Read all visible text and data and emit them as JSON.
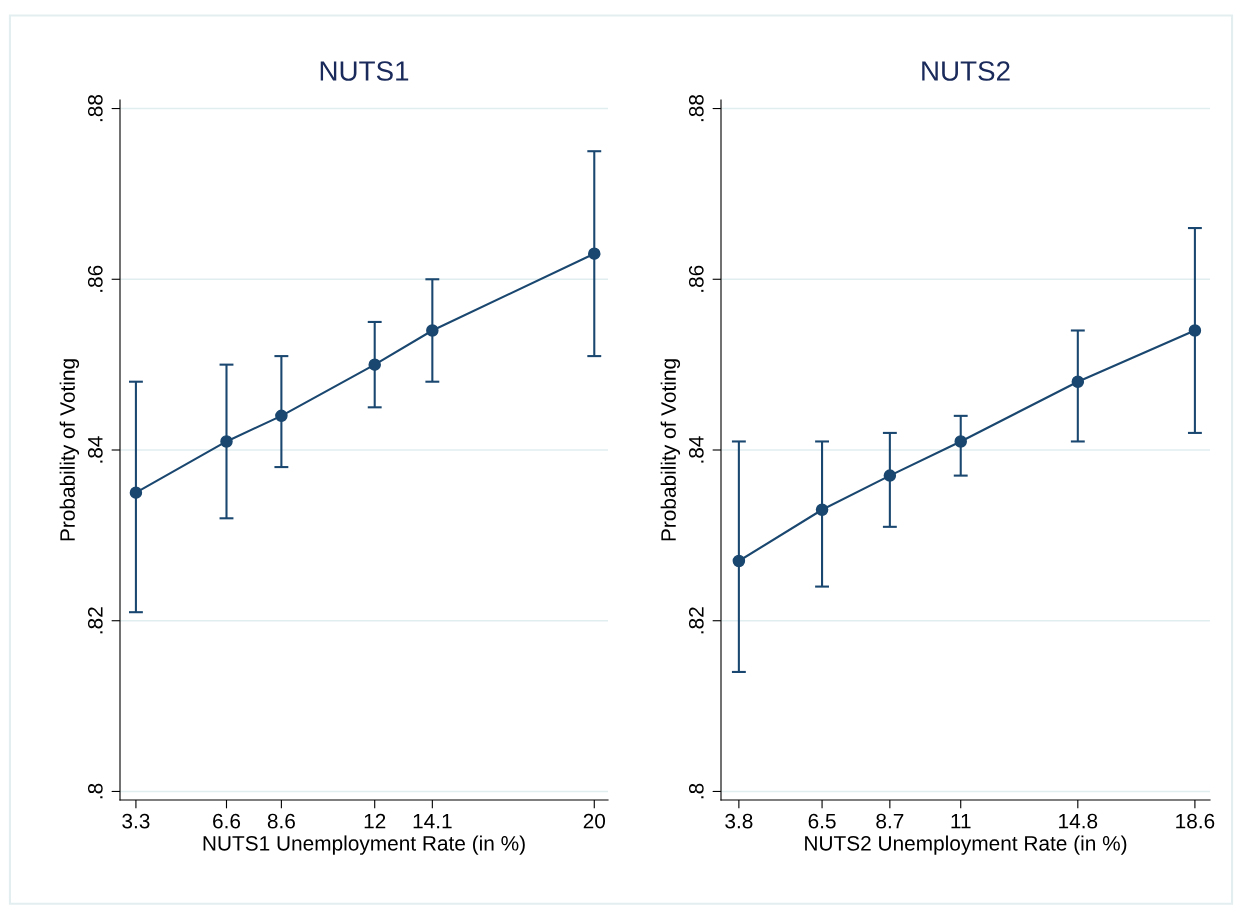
{
  "chart_data": [
    {
      "type": "line",
      "title": "NUTS1",
      "xlabel": "NUTS1 Unemployment Rate (in %)",
      "ylabel": "Probability of Voting",
      "x": [
        3.3,
        6.6,
        8.6,
        12,
        14.1,
        20
      ],
      "series": [
        {
          "color": "#1a476f",
          "values": [
            0.835,
            0.841,
            0.844,
            0.85,
            0.854,
            0.863
          ],
          "errors": [
            [
              0.821,
              0.848
            ],
            [
              0.832,
              0.85
            ],
            [
              0.838,
              0.851
            ],
            [
              0.845,
              0.855
            ],
            [
              0.848,
              0.86
            ],
            [
              0.851,
              0.875
            ]
          ]
        }
      ],
      "marker": "circle",
      "line_style": "solid",
      "grid": "y",
      "legend": false,
      "xlim": [
        2.72,
        20.5
      ],
      "xticks": [
        3.3,
        6.6,
        8.6,
        12,
        14.1,
        20
      ],
      "ylim": [
        0.799,
        0.881
      ],
      "yticks": [
        {
          "value": 0.8,
          "label": ".8"
        },
        {
          "value": 0.82,
          "label": ".82"
        },
        {
          "value": 0.84,
          "label": ".84"
        },
        {
          "value": 0.86,
          "label": ".86"
        },
        {
          "value": 0.88,
          "label": ".88"
        }
      ]
    },
    {
      "type": "line",
      "title": "NUTS2",
      "xlabel": "NUTS2 Unemployment Rate (in %)",
      "ylabel": "Probability of Voting",
      "x": [
        3.8,
        6.5,
        8.7,
        11,
        14.8,
        18.6
      ],
      "series": [
        {
          "color": "#1a476f",
          "values": [
            0.827,
            0.833,
            0.837,
            0.841,
            0.848,
            0.854
          ],
          "errors": [
            [
              0.814,
              0.841
            ],
            [
              0.824,
              0.841
            ],
            [
              0.831,
              0.842
            ],
            [
              0.837,
              0.844
            ],
            [
              0.841,
              0.854
            ],
            [
              0.842,
              0.866
            ]
          ]
        }
      ],
      "marker": "circle",
      "line_style": "solid",
      "grid": "y",
      "legend": false,
      "xlim": [
        3.22,
        19.09
      ],
      "xticks": [
        3.8,
        6.5,
        8.7,
        11,
        14.8,
        18.6
      ],
      "ylim": [
        0.799,
        0.881
      ],
      "yticks": [
        {
          "value": 0.8,
          "label": ".8"
        },
        {
          "value": 0.82,
          "label": ".82"
        },
        {
          "value": 0.84,
          "label": ".84"
        },
        {
          "value": 0.86,
          "label": ".86"
        },
        {
          "value": 0.88,
          "label": ".88"
        }
      ]
    }
  ]
}
